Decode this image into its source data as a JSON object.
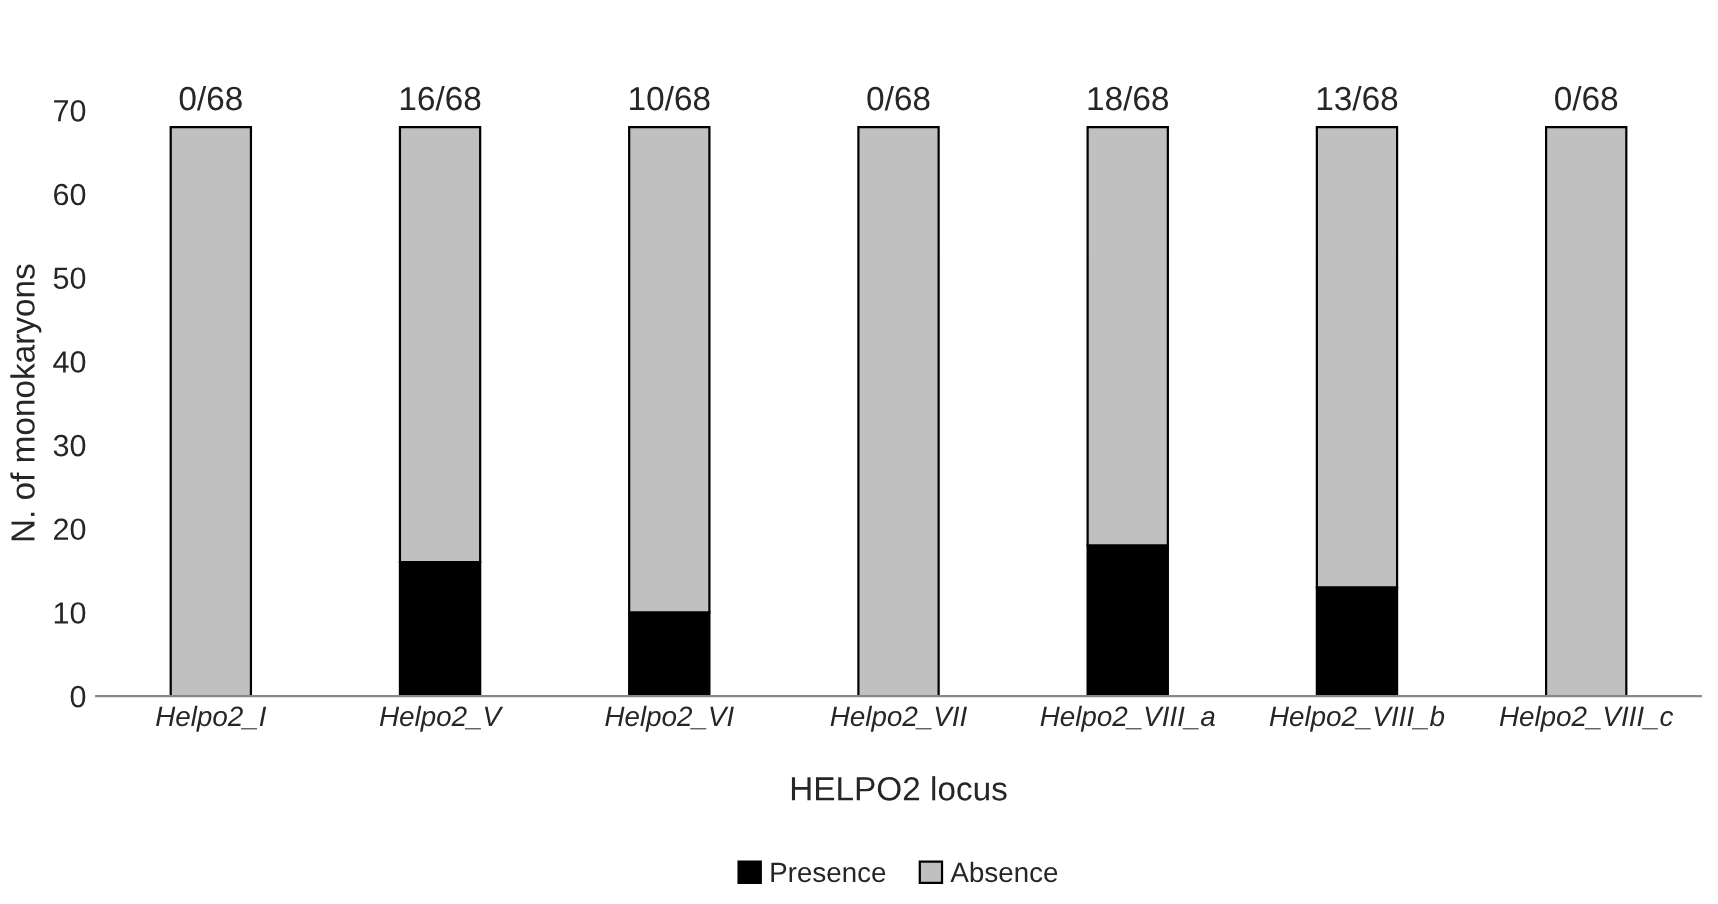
{
  "chart_data": {
    "type": "bar",
    "stacked": true,
    "xlabel": "HELPO2 locus",
    "ylabel": "N. of monokaryons",
    "categories": [
      "Helpo2_I",
      "Helpo2_V",
      "Helpo2_VI",
      "Helpo2_VII",
      "Helpo2_VIII_a",
      "Helpo2_VIII_b",
      "Helpo2_VIII_c"
    ],
    "series": [
      {
        "name": "Presence",
        "color": "#000000",
        "values": [
          0,
          16,
          10,
          0,
          18,
          13,
          0
        ]
      },
      {
        "name": "Absence",
        "color": "#c0c0c0",
        "values": [
          68,
          52,
          58,
          68,
          50,
          55,
          68
        ]
      }
    ],
    "totals": [
      "0/68",
      "16/68",
      "10/68",
      "0/68",
      "18/68",
      "13/68",
      "0/68"
    ],
    "ylim": [
      0,
      70
    ],
    "yticks": [
      0,
      10,
      20,
      30,
      40,
      50,
      60,
      70
    ],
    "grid": false,
    "legend": "bottom"
  }
}
